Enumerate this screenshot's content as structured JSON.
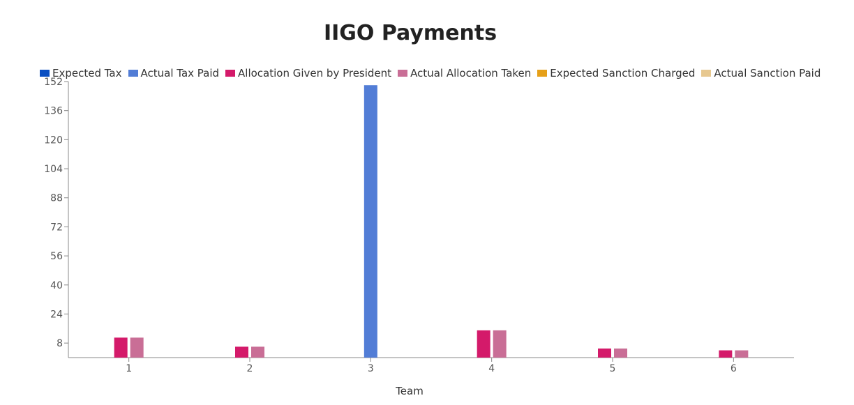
{
  "chart_data": {
    "type": "bar",
    "title": "IIGO Payments",
    "xlabel": "Team",
    "ylabel": "",
    "categories": [
      "1",
      "2",
      "3",
      "4",
      "5",
      "6"
    ],
    "ylim": [
      0,
      152
    ],
    "yticks": [
      8,
      24,
      40,
      56,
      72,
      88,
      104,
      120,
      136,
      152
    ],
    "grid": false,
    "legend_position": "top-left",
    "series": [
      {
        "name": "Expected Tax",
        "color": "#0a4fc2",
        "values": [
          0,
          0,
          0,
          0,
          0,
          0
        ]
      },
      {
        "name": "Actual Tax Paid",
        "color": "#527dd6",
        "values": [
          0,
          0,
          150,
          0,
          0,
          0
        ]
      },
      {
        "name": "Allocation Given by President",
        "color": "#d41a6a",
        "values": [
          11,
          6,
          0,
          15,
          5,
          4
        ]
      },
      {
        "name": "Actual Allocation Taken",
        "color": "#c96e96",
        "values": [
          11,
          6,
          0,
          15,
          5,
          4
        ]
      },
      {
        "name": "Expected Sanction Charged",
        "color": "#e6a019",
        "values": [
          0,
          0,
          0,
          0,
          0,
          0
        ]
      },
      {
        "name": "Actual Sanction Paid",
        "color": "#e7c890",
        "values": [
          0,
          0,
          0,
          0,
          0,
          0
        ]
      }
    ]
  }
}
